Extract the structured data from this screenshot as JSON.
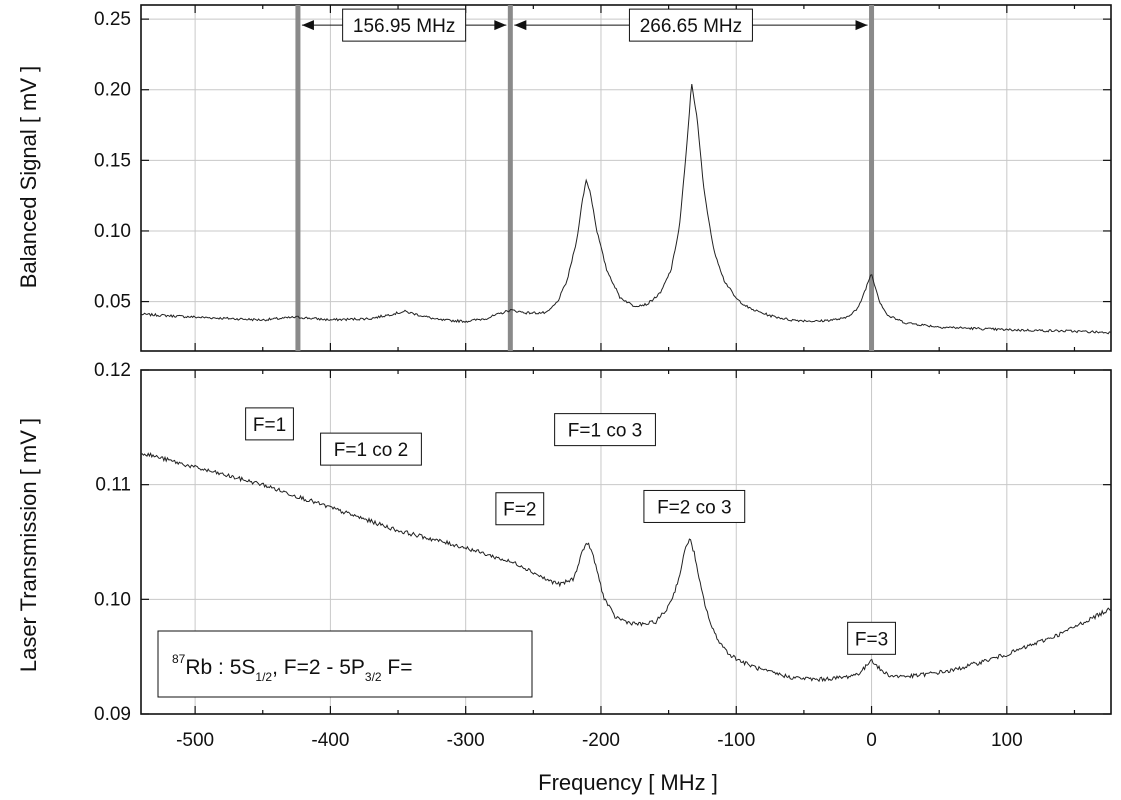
{
  "chart_data": [
    {
      "type": "line",
      "panel": "top",
      "ylabel": "Balanced Signal [ mV ]",
      "xlim": [
        -540,
        177
      ],
      "ylim": [
        0.015,
        0.26
      ],
      "xticks": [
        -500,
        -400,
        -300,
        -200,
        -100,
        0,
        100
      ],
      "yticks": [
        0.05,
        0.1,
        0.15,
        0.2,
        0.25
      ],
      "ytick_labels": [
        "0.05",
        "0.10",
        "0.15",
        "0.20",
        "0.25"
      ],
      "grid": true,
      "series": [
        {
          "x": [
            -540,
            -500,
            -450,
            -425,
            -400,
            -370,
            -345,
            -320,
            -300,
            -285,
            -267,
            -255,
            -240,
            -232,
            -225,
            -218,
            -214,
            -211,
            -208,
            -203,
            -196,
            -186,
            -176,
            -166,
            -156,
            -148,
            -142,
            -137,
            -133,
            -129,
            -124,
            -117,
            -109,
            -100,
            -90,
            -75,
            -60,
            -40,
            -20,
            -10,
            -4,
            -1,
            0,
            2,
            6,
            12,
            25,
            50,
            100,
            150,
            177
          ],
          "y": [
            0.041,
            0.039,
            0.037,
            0.039,
            0.037,
            0.038,
            0.043,
            0.037,
            0.036,
            0.038,
            0.044,
            0.042,
            0.042,
            0.05,
            0.065,
            0.093,
            0.12,
            0.136,
            0.128,
            0.1,
            0.073,
            0.053,
            0.047,
            0.048,
            0.056,
            0.073,
            0.103,
            0.155,
            0.205,
            0.18,
            0.13,
            0.088,
            0.065,
            0.052,
            0.045,
            0.04,
            0.037,
            0.036,
            0.038,
            0.045,
            0.06,
            0.068,
            0.07,
            0.063,
            0.05,
            0.04,
            0.035,
            0.032,
            0.03,
            0.029,
            0.028
          ]
        }
      ],
      "markers": [
        {
          "x": -424
        },
        {
          "x": -267
        },
        {
          "x": 0
        }
      ],
      "annotations": [
        {
          "text": "156.95 MHz",
          "from": -424,
          "to": -267,
          "y": 0.25
        },
        {
          "text": "266.65 MHz",
          "from": -267,
          "to": 0,
          "y": 0.25
        }
      ]
    },
    {
      "type": "line",
      "panel": "bottom",
      "xlabel": "Frequency [ MHz ]",
      "ylabel": "Laser Transmission [ mV ]",
      "xlim": [
        -540,
        177
      ],
      "ylim": [
        0.09,
        0.12
      ],
      "xticks": [
        -500,
        -400,
        -300,
        -200,
        -100,
        0,
        100
      ],
      "xtick_labels": [
        "-500",
        "-400",
        "-300",
        "-200",
        "-100",
        "0",
        "100"
      ],
      "yticks": [
        0.09,
        0.1,
        0.11,
        0.12
      ],
      "ytick_labels": [
        "0.09",
        "0.10",
        "0.11",
        "0.12"
      ],
      "grid": true,
      "series": [
        {
          "x": [
            -540,
            -500,
            -450,
            -400,
            -350,
            -300,
            -260,
            -240,
            -230,
            -220,
            -215,
            -211,
            -208,
            -204,
            -198,
            -190,
            -180,
            -170,
            -160,
            -152,
            -146,
            -141,
            -137,
            -134,
            -131,
            -128,
            -123,
            -118,
            -112,
            -105,
            -95,
            -80,
            -60,
            -40,
            -20,
            -10,
            -5,
            -2,
            0,
            3,
            8,
            15,
            30,
            60,
            100,
            140,
            177
          ],
          "y": [
            0.1128,
            0.1115,
            0.11,
            0.108,
            0.106,
            0.1045,
            0.103,
            0.1017,
            0.1013,
            0.1018,
            0.1038,
            0.1049,
            0.1046,
            0.103,
            0.1002,
            0.0985,
            0.098,
            0.0978,
            0.098,
            0.099,
            0.1005,
            0.1025,
            0.1048,
            0.1052,
            0.104,
            0.102,
            0.0995,
            0.0975,
            0.0962,
            0.0952,
            0.0945,
            0.0938,
            0.0932,
            0.093,
            0.0932,
            0.0935,
            0.094,
            0.0945,
            0.0948,
            0.0943,
            0.0937,
            0.0933,
            0.0933,
            0.0938,
            0.0952,
            0.097,
            0.0992
          ]
        }
      ],
      "labels": [
        {
          "text": "F=1",
          "x": -445,
          "y": 0.1153
        },
        {
          "text": "F=1 co 2",
          "x": -370,
          "y": 0.1131
        },
        {
          "text": "F=1 co 3",
          "x": -197,
          "y": 0.1148
        },
        {
          "text": "F=2",
          "x": -260,
          "y": 0.1079
        },
        {
          "text": "F=2 co 3",
          "x": -131,
          "y": 0.1081
        },
        {
          "text": "F=3",
          "x": 0,
          "y": 0.0966
        }
      ],
      "inset": {
        "isotope": "87",
        "element": "Rb : 5S",
        "sub1": "1/2",
        "mid": ", F=2 - 5P",
        "sub2": "3/2",
        "tail": " F="
      }
    }
  ]
}
